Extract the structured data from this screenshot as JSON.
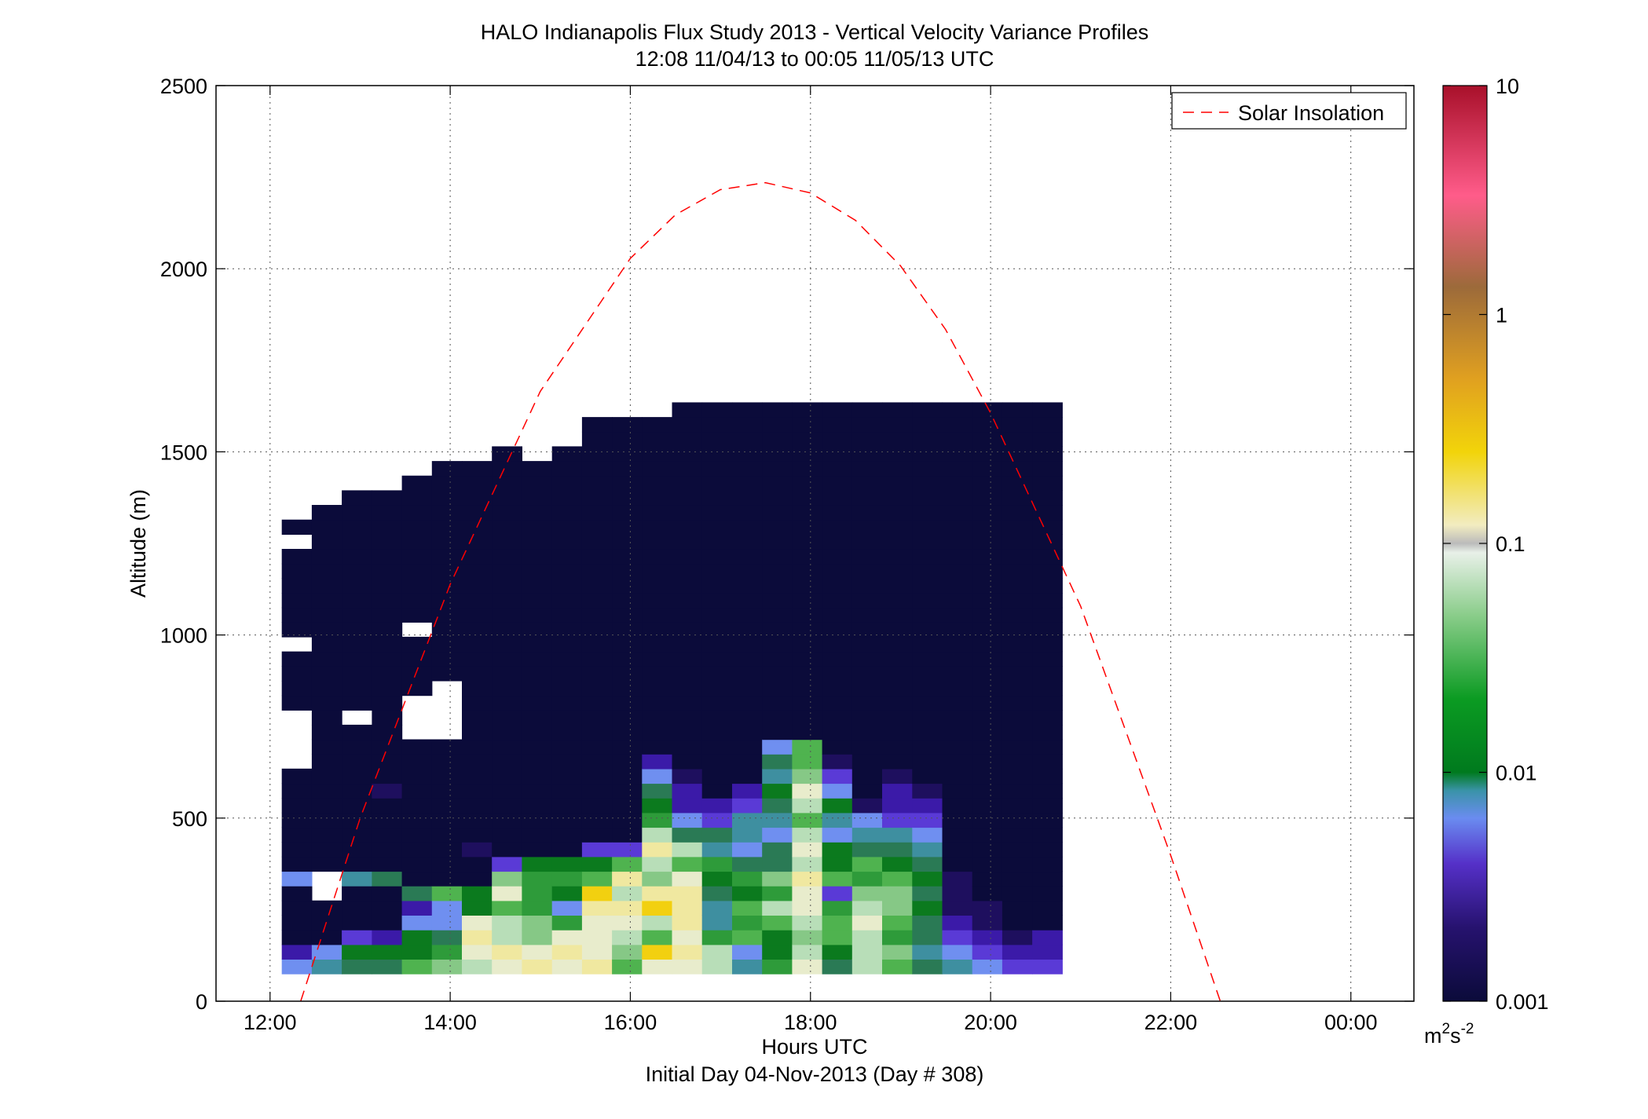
{
  "chart_data": {
    "type": "heatmap",
    "title": "HALO Indianapolis Flux Study 2013 - Vertical Velocity Variance Profiles",
    "subtitle": "12:08 11/04/13 to 00:05 11/05/13  UTC",
    "xlabel": "Hours UTC",
    "xlabel2": "Initial Day 04-Nov-2013 (Day # 308)",
    "ylabel": "Altitude (m)",
    "xlim": [
      11.4,
      24.7
    ],
    "ylim": [
      0,
      2500
    ],
    "x_ticks": [
      12,
      14,
      16,
      18,
      20,
      22,
      24
    ],
    "x_tick_labels": [
      "12:00",
      "14:00",
      "16:00",
      "18:00",
      "20:00",
      "22:00",
      "00:00"
    ],
    "y_ticks": [
      0,
      500,
      1000,
      1500,
      2000,
      2500
    ],
    "y_tick_labels": [
      "0",
      "500",
      "1000",
      "1500",
      "2000",
      "2500"
    ],
    "grid": true,
    "legend": {
      "position": "top-right",
      "entries": [
        {
          "label": "Solar Insolation",
          "color": "#ff0000",
          "style": "dashed"
        }
      ]
    },
    "colorbar": {
      "scale": "log",
      "range": [
        0.001,
        10
      ],
      "ticks": [
        0.001,
        0.01,
        0.1,
        1,
        10
      ],
      "tick_labels": [
        "0.001",
        "0.01",
        "0.1",
        "1",
        "10"
      ],
      "unit": "m",
      "unit_sup1": "2",
      "unit_mid": "s",
      "unit_sup2": "-2"
    },
    "solar_insolation": {
      "x": [
        12.34,
        13.0,
        14.0,
        15.0,
        16.0,
        16.5,
        17.0,
        17.5,
        18.0,
        18.5,
        19.0,
        19.5,
        20.0,
        21.0,
        22.0,
        22.55
      ],
      "y": [
        0,
        500,
        1138,
        1665,
        2028,
        2147,
        2216,
        2235,
        2207,
        2132,
        2008,
        1834,
        1606,
        1078,
        398,
        0
      ]
    },
    "profiles": {
      "x_start": 12.13,
      "dx": 0.3333,
      "z_start": 75,
      "dz": 40,
      "grid_note": "26 time columns of 40 m altitude bins; level 0 = 0.001, 1 = 0.002, 2 = 0.003, 3 = 0.005, 4 = 0.01, 5 = 0.015, 6 = 0.02, 7 = 0.03, 8 = 0.04, 9 = 0.06, 10 = 0.08, 11 = 0.12, 12 = 0.2, 13 = 0.3, 14 = 0.5",
      "level_values": [
        0.001,
        0.002,
        0.003,
        0.005,
        0.01,
        0.015,
        0.02,
        0.03,
        0.04,
        0.06,
        0.08,
        0.12,
        0.2,
        0.3,
        0.5
      ],
      "columns": [
        [
          4,
          2,
          0,
          0,
          0,
          0,
          4,
          0,
          0,
          0,
          0,
          0,
          0,
          0,
          -1,
          -1,
          -1,
          -1,
          0,
          0,
          0,
          0,
          -1,
          0,
          0,
          0,
          0,
          0,
          0,
          -1,
          0
        ],
        [
          5,
          4,
          0,
          0,
          0,
          -1,
          -1,
          0,
          0,
          0,
          0,
          0,
          0,
          0,
          0,
          0,
          0,
          0,
          0,
          0,
          0,
          0,
          0,
          0,
          0,
          0,
          0,
          0,
          0,
          0,
          0,
          0
        ],
        [
          6,
          7,
          3,
          0,
          0,
          0,
          5,
          0,
          0,
          0,
          0,
          0,
          0,
          0,
          0,
          0,
          0,
          -1,
          0,
          0,
          0,
          0,
          0,
          0,
          0,
          0,
          0,
          0,
          0,
          0,
          0,
          0,
          0
        ],
        [
          6,
          7,
          2,
          0,
          0,
          0,
          6,
          0,
          0,
          0,
          0,
          0,
          1,
          0,
          0,
          0,
          0,
          0,
          0,
          0,
          0,
          0,
          0,
          0,
          0,
          0,
          0,
          0,
          0,
          0,
          0,
          0,
          0
        ],
        [
          9,
          7,
          7,
          4,
          2,
          6,
          0,
          0,
          0,
          0,
          0,
          0,
          0,
          0,
          0,
          0,
          -1,
          -1,
          -1,
          0,
          0,
          0,
          0,
          -1,
          0,
          0,
          0,
          0,
          0,
          0,
          0,
          0,
          0,
          0
        ],
        [
          10,
          8,
          6,
          4,
          4,
          9,
          0,
          0,
          0,
          0,
          0,
          0,
          0,
          0,
          0,
          0,
          -1,
          -1,
          -1,
          -1,
          0,
          0,
          0,
          0,
          0,
          0,
          0,
          0,
          0,
          0,
          0,
          0,
          0,
          0,
          0
        ],
        [
          11,
          12,
          13,
          12,
          7,
          7,
          0,
          0,
          1,
          0,
          0,
          0,
          0,
          0,
          0,
          0,
          0,
          0,
          0,
          0,
          0,
          0,
          0,
          0,
          0,
          0,
          0,
          0,
          0,
          0,
          0,
          0,
          0,
          0,
          0
        ],
        [
          12,
          13,
          11,
          11,
          9,
          12,
          10,
          3,
          0,
          0,
          0,
          0,
          0,
          0,
          0,
          0,
          0,
          0,
          0,
          0,
          0,
          0,
          0,
          0,
          0,
          0,
          0,
          0,
          0,
          0,
          0,
          0,
          0,
          0,
          0,
          0
        ],
        [
          13,
          12,
          10,
          10,
          8,
          8,
          8,
          7,
          0,
          0,
          0,
          0,
          0,
          0,
          0,
          0,
          0,
          0,
          0,
          0,
          0,
          0,
          0,
          0,
          0,
          0,
          0,
          0,
          0,
          0,
          0,
          0,
          0,
          0,
          0,
          -1
        ],
        [
          12,
          13,
          12,
          8,
          4,
          7,
          8,
          7,
          0,
          0,
          0,
          0,
          0,
          0,
          0,
          0,
          0,
          0,
          0,
          0,
          0,
          0,
          0,
          0,
          0,
          0,
          0,
          0,
          0,
          0,
          0,
          0,
          0,
          0,
          0,
          0
        ],
        [
          13,
          12,
          12,
          12,
          13,
          14,
          9,
          7,
          3,
          0,
          0,
          0,
          0,
          0,
          0,
          0,
          0,
          0,
          0,
          0,
          0,
          0,
          0,
          0,
          0,
          0,
          0,
          0,
          0,
          0,
          0,
          0,
          0,
          0,
          0,
          0,
          0,
          0
        ],
        [
          9,
          10,
          11,
          12,
          13,
          11,
          13,
          9,
          3,
          0,
          0,
          0,
          0,
          0,
          0,
          0,
          0,
          0,
          0,
          0,
          0,
          0,
          0,
          0,
          0,
          0,
          0,
          0,
          0,
          0,
          0,
          0,
          0,
          0,
          0,
          0,
          0,
          0
        ],
        [
          12,
          14,
          9,
          11,
          14,
          13,
          10,
          11,
          13,
          11,
          8,
          7,
          6,
          4,
          2,
          0,
          0,
          0,
          0,
          0,
          0,
          0,
          0,
          0,
          0,
          0,
          0,
          0,
          0,
          0,
          0,
          0,
          0,
          0,
          0,
          0,
          0,
          0
        ],
        [
          12,
          13,
          12,
          13,
          13,
          13,
          12,
          9,
          11,
          6,
          4,
          2,
          2,
          1,
          0,
          0,
          0,
          0,
          0,
          0,
          0,
          0,
          0,
          0,
          0,
          0,
          0,
          0,
          0,
          0,
          0,
          0,
          0,
          0,
          0,
          0,
          0,
          0,
          0
        ],
        [
          11,
          11,
          8,
          5,
          5,
          6,
          7,
          8,
          5,
          6,
          3,
          2,
          0,
          0,
          0,
          0,
          0,
          0,
          0,
          0,
          0,
          0,
          0,
          0,
          0,
          0,
          0,
          0,
          0,
          0,
          0,
          0,
          0,
          0,
          0,
          0,
          0,
          0,
          0
        ],
        [
          5,
          4,
          9,
          8,
          9,
          7,
          8,
          6,
          4,
          5,
          5,
          3,
          2,
          0,
          0,
          0,
          0,
          0,
          0,
          0,
          0,
          0,
          0,
          0,
          0,
          0,
          0,
          0,
          0,
          0,
          0,
          0,
          0,
          0,
          0,
          0,
          0,
          0,
          0
        ],
        [
          8,
          7,
          7,
          9,
          11,
          8,
          10,
          6,
          6,
          4,
          5,
          6,
          7,
          5,
          6,
          4,
          0,
          0,
          0,
          0,
          0,
          0,
          0,
          0,
          0,
          0,
          0,
          0,
          0,
          0,
          0,
          0,
          0,
          0,
          0,
          0,
          0,
          0,
          0
        ],
        [
          12,
          11,
          10,
          11,
          12,
          12,
          13,
          11,
          12,
          11,
          9,
          11,
          12,
          10,
          9,
          9,
          0,
          0,
          0,
          0,
          0,
          0,
          0,
          0,
          0,
          0,
          0,
          0,
          0,
          0,
          0,
          0,
          0,
          0,
          0,
          0,
          0,
          0,
          0
        ],
        [
          6,
          7,
          9,
          9,
          8,
          3,
          9,
          7,
          7,
          4,
          5,
          7,
          4,
          3,
          1,
          0,
          0,
          0,
          0,
          0,
          0,
          0,
          0,
          0,
          0,
          0,
          0,
          0,
          0,
          0,
          0,
          0,
          0,
          0,
          0,
          0,
          0,
          0,
          0
        ],
        [
          11,
          11,
          11,
          12,
          11,
          10,
          8,
          9,
          6,
          5,
          4,
          1,
          0,
          0,
          0,
          0,
          0,
          0,
          0,
          0,
          0,
          0,
          0,
          0,
          0,
          0,
          0,
          0,
          0,
          0,
          0,
          0,
          0,
          0,
          0,
          0,
          0,
          0,
          0
        ],
        [
          9,
          10,
          8,
          9,
          10,
          10,
          9,
          7,
          6,
          5,
          3,
          2,
          2,
          1,
          0,
          0,
          0,
          0,
          0,
          0,
          0,
          0,
          0,
          0,
          0,
          0,
          0,
          0,
          0,
          0,
          0,
          0,
          0,
          0,
          0,
          0,
          0,
          0,
          0
        ],
        [
          6,
          5,
          6,
          6,
          7,
          6,
          7,
          6,
          5,
          4,
          3,
          2,
          1,
          0,
          0,
          0,
          0,
          0,
          0,
          0,
          0,
          0,
          0,
          0,
          0,
          0,
          0,
          0,
          0,
          0,
          0,
          0,
          0,
          0,
          0,
          0,
          0,
          0,
          0
        ],
        [
          5,
          4,
          3,
          2,
          1,
          1,
          1,
          0,
          0,
          0,
          0,
          0,
          0,
          0,
          0,
          0,
          0,
          0,
          0,
          0,
          0,
          0,
          0,
          0,
          0,
          0,
          0,
          0,
          0,
          0,
          0,
          0,
          0,
          0,
          0,
          0,
          0,
          0,
          0
        ],
        [
          4,
          3,
          2,
          1,
          1,
          0,
          0,
          0,
          0,
          0,
          0,
          0,
          0,
          0,
          0,
          0,
          0,
          0,
          0,
          0,
          0,
          0,
          0,
          0,
          0,
          0,
          0,
          0,
          0,
          0,
          0,
          0,
          0,
          0,
          0,
          0,
          0,
          0,
          0
        ],
        [
          3,
          2,
          1,
          0,
          0,
          0,
          0,
          0,
          0,
          0,
          0,
          0,
          0,
          0,
          0,
          0,
          0,
          0,
          0,
          0,
          0,
          0,
          0,
          0,
          0,
          0,
          0,
          0,
          0,
          0,
          0,
          0,
          0,
          0,
          0,
          0,
          0,
          0,
          0
        ],
        [
          3,
          2,
          2,
          0,
          0,
          0,
          0,
          0,
          0,
          0,
          0,
          0,
          0,
          0,
          0,
          0,
          0,
          0,
          0,
          0,
          0,
          0,
          0,
          0,
          0,
          0,
          0,
          0,
          0,
          0,
          0,
          0,
          0,
          0,
          0,
          0,
          0,
          0,
          0
        ]
      ]
    }
  }
}
